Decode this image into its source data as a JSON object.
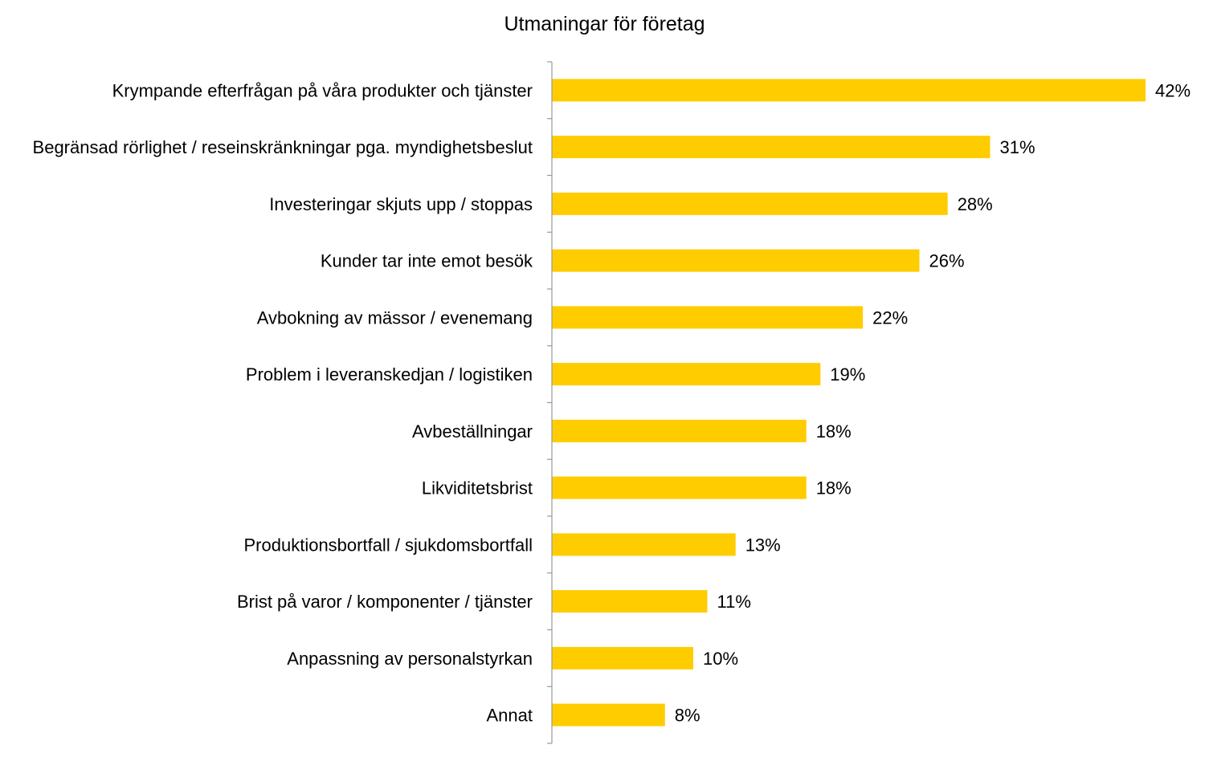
{
  "chart_data": {
    "type": "bar",
    "orientation": "horizontal",
    "title": "Utmaningar för företag",
    "xlabel": "",
    "ylabel": "",
    "categories": [
      "Krympande efterfrågan på våra produkter och tjänster",
      "Begränsad rörlighet / reseinskränkningar pga. myndighetsbeslut",
      "Investeringar skjuts upp / stoppas",
      "Kunder tar inte emot besök",
      "Avbokning av mässor / evenemang",
      "Problem i leveranskedjan / logistiken",
      "Avbeställningar",
      "Likviditetsbrist",
      "Produktionsbortfall / sjukdomsbortfall",
      "Brist på varor / komponenter / tjänster",
      "Anpassning av personalstyrkan",
      "Annat"
    ],
    "values": [
      42,
      31,
      28,
      26,
      22,
      19,
      18,
      18,
      13,
      11,
      10,
      8
    ],
    "value_labels": [
      "42%",
      "31%",
      "28%",
      "26%",
      "22%",
      "19%",
      "18%",
      "18%",
      "13%",
      "11%",
      "10%",
      "8%"
    ],
    "xlim": [
      0,
      42
    ],
    "grid": false,
    "legend": "none",
    "bar_color": "#FFCC00",
    "axis_color": "#999999"
  }
}
